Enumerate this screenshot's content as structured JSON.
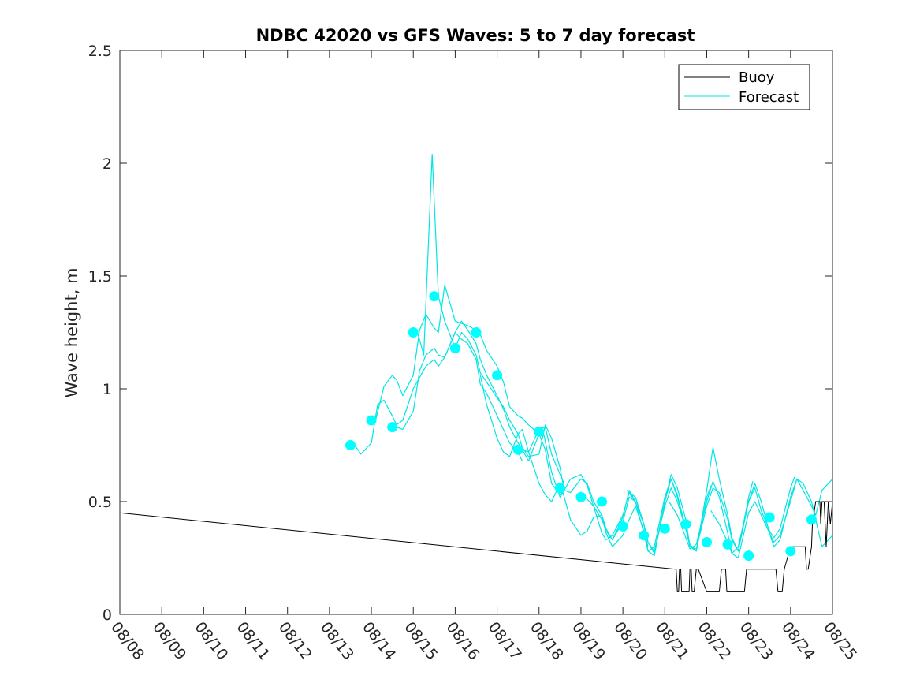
{
  "chart_data": {
    "type": "line",
    "title": "NDBC 42020 vs GFS Waves: 5 to 7 day forecast",
    "xlabel": "",
    "ylabel": "Wave height, m",
    "xlim": [
      0,
      17
    ],
    "ylim": [
      0,
      2.5
    ],
    "grid": false,
    "legend_position": "top-right",
    "x_tick_labels": [
      "08/08",
      "08/09",
      "08/10",
      "08/11",
      "08/12",
      "08/13",
      "08/14",
      "08/15",
      "08/16",
      "08/17",
      "08/18",
      "08/19",
      "08/20",
      "08/21",
      "08/22",
      "08/23",
      "08/24",
      "08/25"
    ],
    "y_ticks": [
      0,
      0.5,
      1,
      1.5,
      2,
      2.5
    ],
    "y_tick_labels": [
      "0",
      "0.5",
      "1",
      "1.5",
      "2",
      "2.5"
    ],
    "x_units": "days since 08/08 00:00",
    "legend": [
      {
        "name": "Buoy",
        "color": "#000000"
      },
      {
        "name": "Forecast",
        "color": "#00e5e5"
      }
    ],
    "colors": {
      "buoy": "#000000",
      "forecast": "#00e5e5",
      "observed_points": "#00ffff"
    },
    "buoy": {
      "name": "Buoy",
      "x": [
        0.0,
        13.25,
        13.27,
        13.3,
        13.33,
        13.35,
        13.38,
        13.4,
        13.42,
        13.45,
        13.5,
        13.55,
        13.58,
        13.6,
        13.63,
        13.65,
        13.67,
        13.7,
        13.75,
        13.8,
        14.0,
        14.3,
        14.35,
        14.4,
        14.45,
        14.48,
        14.5,
        14.55,
        14.6,
        14.65,
        14.75,
        14.9,
        14.95,
        15.0,
        15.3,
        15.65,
        15.7,
        15.75,
        15.8,
        15.85,
        16.0,
        16.25,
        16.35,
        16.38,
        16.42,
        16.5,
        16.52,
        16.6,
        16.7,
        16.72,
        16.75,
        16.8,
        16.85,
        16.9,
        16.95,
        17.0
      ],
      "values": [
        0.45,
        0.2,
        0.2,
        0.1,
        0.1,
        0.2,
        0.2,
        0.1,
        0.1,
        0.1,
        0.1,
        0.1,
        0.1,
        0.2,
        0.2,
        0.1,
        0.1,
        0.1,
        0.2,
        0.2,
        0.1,
        0.1,
        0.2,
        0.2,
        0.2,
        0.1,
        0.1,
        0.1,
        0.1,
        0.1,
        0.1,
        0.1,
        0.2,
        0.2,
        0.2,
        0.2,
        0.1,
        0.1,
        0.1,
        0.2,
        0.3,
        0.3,
        0.3,
        0.2,
        0.2,
        0.3,
        0.4,
        0.5,
        0.5,
        0.4,
        0.5,
        0.5,
        0.3,
        0.5,
        0.4,
        0.5
      ]
    },
    "forecast_series": [
      {
        "name": "Forecast",
        "x": [
          5.6,
          5.75,
          6.0,
          6.15,
          6.3,
          6.5,
          6.6,
          6.75,
          7.0,
          7.15,
          7.3,
          7.5,
          7.6,
          7.75,
          8.0,
          8.15,
          8.3,
          8.5,
          8.6,
          8.75,
          9.0,
          9.15,
          9.3,
          9.5,
          9.6
        ],
        "values": [
          0.75,
          0.71,
          0.76,
          0.93,
          0.95,
          0.88,
          0.84,
          0.86,
          1.0,
          1.05,
          1.1,
          1.13,
          1.1,
          1.14,
          1.25,
          1.22,
          1.2,
          1.13,
          1.02,
          0.98,
          0.88,
          0.82,
          0.76,
          0.72,
          0.68
        ]
      },
      {
        "name": "Forecast",
        "x": [
          6.1,
          6.3,
          6.5,
          6.6,
          6.75,
          7.0,
          7.15,
          7.3,
          7.5,
          7.6,
          7.75,
          8.0,
          8.15,
          8.3,
          8.5,
          8.6,
          8.75,
          9.0,
          9.15,
          9.3,
          9.5,
          9.6,
          9.75,
          10.0
        ],
        "values": [
          0.86,
          1.01,
          1.06,
          1.04,
          0.97,
          1.06,
          1.26,
          1.33,
          1.27,
          1.25,
          1.46,
          1.3,
          1.29,
          1.28,
          1.26,
          1.24,
          1.17,
          1.1,
          1.03,
          0.92,
          0.88,
          0.87,
          0.84,
          0.8
        ]
      },
      {
        "name": "Forecast",
        "x": [
          6.6,
          6.75,
          7.0,
          7.15,
          7.3,
          7.5,
          7.6,
          7.75,
          8.0,
          8.15,
          8.3,
          8.5,
          8.6,
          8.75,
          9.0,
          9.15,
          9.3,
          9.5,
          9.6,
          9.75,
          10.0,
          10.15,
          10.3,
          10.5,
          10.6
        ],
        "values": [
          0.83,
          0.82,
          0.9,
          1.08,
          1.15,
          1.18,
          1.15,
          1.14,
          1.25,
          1.3,
          1.26,
          1.2,
          1.13,
          1.06,
          0.97,
          0.91,
          0.83,
          0.76,
          0.73,
          0.72,
          0.82,
          0.83,
          0.71,
          0.62,
          0.58
        ]
      },
      {
        "name": "Forecast",
        "x": [
          7.1,
          7.25,
          7.45,
          7.6,
          7.75,
          8.0,
          8.15,
          8.3,
          8.5,
          8.6,
          8.75,
          9.0,
          9.15,
          9.3,
          9.5,
          9.6,
          9.75,
          10.0,
          10.15,
          10.3,
          10.5,
          10.6
        ],
        "values": [
          1.25,
          1.15,
          2.04,
          1.41,
          1.3,
          1.18,
          1.25,
          1.22,
          1.15,
          1.07,
          1.03,
          0.96,
          0.92,
          0.86,
          0.8,
          0.74,
          0.7,
          0.71,
          0.84,
          0.78,
          0.65,
          0.55
        ]
      },
      {
        "name": "Forecast",
        "x": [
          8.6,
          8.75,
          9.0,
          9.15,
          9.3,
          9.5,
          9.6,
          9.75,
          10.0,
          10.15,
          10.3,
          10.5,
          10.6,
          10.75,
          11.0,
          11.15,
          11.3,
          11.5,
          11.6,
          11.75,
          12.0,
          12.15,
          12.3,
          12.5,
          12.6
        ],
        "values": [
          1.06,
          0.93,
          0.78,
          0.72,
          0.7,
          0.8,
          0.82,
          0.72,
          0.58,
          0.53,
          0.5,
          0.58,
          0.52,
          0.42,
          0.35,
          0.37,
          0.43,
          0.44,
          0.36,
          0.3,
          0.35,
          0.42,
          0.48,
          0.37,
          0.3
        ]
      },
      {
        "name": "Forecast",
        "x": [
          9.6,
          9.75,
          10.0,
          10.15,
          10.3,
          10.5,
          10.6,
          10.75,
          11.0,
          11.15,
          11.3,
          11.5,
          11.6,
          11.75,
          12.0,
          12.15,
          12.3,
          12.5,
          12.6,
          12.75,
          13.0,
          13.15,
          13.3,
          13.5,
          13.6
        ],
        "values": [
          0.73,
          0.68,
          0.8,
          0.73,
          0.58,
          0.53,
          0.55,
          0.54,
          0.6,
          0.58,
          0.5,
          0.44,
          0.38,
          0.33,
          0.41,
          0.52,
          0.5,
          0.4,
          0.32,
          0.28,
          0.48,
          0.56,
          0.5,
          0.38,
          0.31
        ]
      },
      {
        "name": "Forecast",
        "x": [
          10.1,
          10.3,
          10.5,
          10.6,
          10.75,
          11.0,
          11.15,
          11.3,
          11.5,
          11.6,
          11.75,
          12.0,
          12.15,
          12.3,
          12.5,
          12.6,
          12.75,
          13.0,
          13.15,
          13.3,
          13.5,
          13.6,
          13.75,
          14.0,
          14.1
        ],
        "values": [
          0.81,
          0.63,
          0.52,
          0.55,
          0.6,
          0.62,
          0.57,
          0.48,
          0.42,
          0.37,
          0.33,
          0.43,
          0.55,
          0.5,
          0.4,
          0.32,
          0.27,
          0.5,
          0.6,
          0.52,
          0.38,
          0.31,
          0.28,
          0.52,
          0.57
        ]
      },
      {
        "name": "Forecast",
        "x": [
          11.1,
          11.3,
          11.5,
          11.6,
          11.75,
          12.0,
          12.15,
          12.3,
          12.5,
          12.6,
          12.75,
          13.0,
          13.15,
          13.3,
          13.5,
          13.6,
          13.75,
          14.0,
          14.15,
          14.3,
          14.5,
          14.6,
          14.75,
          15.0,
          15.1
        ],
        "values": [
          0.52,
          0.48,
          0.36,
          0.33,
          0.35,
          0.44,
          0.54,
          0.52,
          0.4,
          0.28,
          0.26,
          0.5,
          0.62,
          0.56,
          0.42,
          0.3,
          0.29,
          0.48,
          0.56,
          0.54,
          0.42,
          0.33,
          0.28,
          0.52,
          0.59
        ]
      },
      {
        "name": "Forecast",
        "x": [
          12.1,
          12.3,
          12.5,
          12.6,
          12.75,
          13.0,
          13.15,
          13.3,
          13.5,
          13.6,
          13.75,
          14.0,
          14.15,
          14.3,
          14.5,
          14.6,
          14.75,
          15.0,
          15.15,
          15.3,
          15.5,
          15.6,
          15.75,
          16.0,
          16.1
        ],
        "values": [
          0.55,
          0.5,
          0.36,
          0.28,
          0.3,
          0.52,
          0.6,
          0.53,
          0.38,
          0.3,
          0.28,
          0.55,
          0.74,
          0.6,
          0.44,
          0.34,
          0.28,
          0.5,
          0.56,
          0.46,
          0.37,
          0.34,
          0.38,
          0.56,
          0.61
        ]
      },
      {
        "name": "Forecast",
        "x": [
          13.1,
          13.3,
          13.5,
          13.6,
          13.75,
          14.0,
          14.15,
          14.3,
          14.5,
          14.6,
          14.75,
          15.0,
          15.15,
          15.3,
          15.5,
          15.6,
          15.75,
          16.0,
          16.15,
          16.3,
          16.5,
          16.6,
          16.75,
          17.0
        ],
        "values": [
          0.5,
          0.44,
          0.34,
          0.29,
          0.31,
          0.5,
          0.59,
          0.52,
          0.36,
          0.27,
          0.25,
          0.45,
          0.5,
          0.44,
          0.36,
          0.32,
          0.35,
          0.5,
          0.6,
          0.58,
          0.5,
          0.42,
          0.3,
          0.35
        ]
      },
      {
        "name": "Forecast",
        "x": [
          14.1,
          14.3,
          14.5,
          14.6,
          14.75,
          15.0,
          15.15,
          15.3,
          15.5,
          15.6,
          15.75,
          16.0,
          16.15,
          16.3,
          16.5,
          16.6,
          16.75,
          17.0
        ],
        "values": [
          0.46,
          0.4,
          0.32,
          0.27,
          0.3,
          0.5,
          0.58,
          0.5,
          0.36,
          0.3,
          0.33,
          0.52,
          0.6,
          0.55,
          0.48,
          0.44,
          0.55,
          0.6
        ]
      }
    ],
    "observed_points": {
      "x": [
        5.5,
        6.0,
        6.5,
        7.0,
        7.5,
        8.0,
        8.5,
        9.0,
        9.5,
        10.0,
        10.5,
        11.0,
        11.5,
        12.0,
        12.5,
        13.0,
        13.5,
        14.0,
        14.5,
        15.0,
        15.5,
        16.0,
        16.5
      ],
      "values": [
        0.75,
        0.86,
        0.83,
        1.25,
        1.41,
        1.18,
        1.25,
        1.06,
        0.73,
        0.81,
        0.56,
        0.52,
        0.5,
        0.39,
        0.35,
        0.38,
        0.4,
        0.32,
        0.31,
        0.26,
        0.43,
        0.28,
        0.42
      ]
    }
  }
}
